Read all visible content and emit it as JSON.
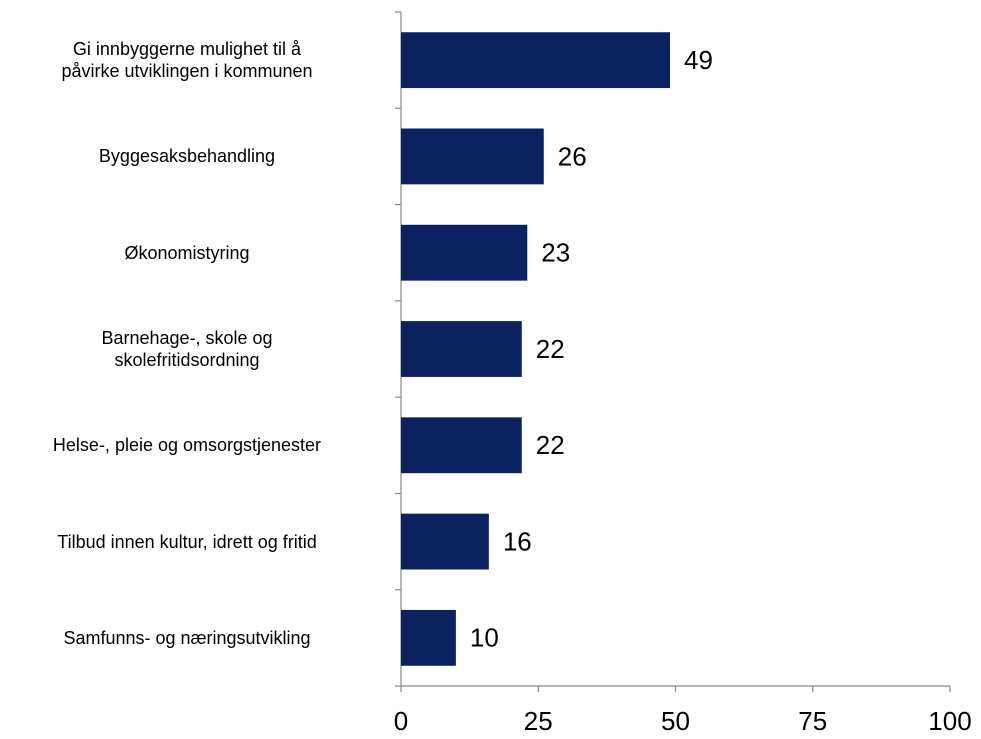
{
  "chart_data": {
    "type": "barh",
    "categories": [
      "Gi innbyggerne mulighet til å\npåvirke utviklingen i kommunen",
      "Byggesaksbehandling",
      "Økonomistyring",
      "Barnehage-, skole og\nskolefritidsordning",
      "Helse-, pleie og omsorgstjenester",
      "Tilbud innen kultur, idrett og fritid",
      "Samfunns- og næringsutvikling"
    ],
    "values": [
      49,
      26,
      23,
      22,
      22,
      16,
      10
    ],
    "color": "#0c2260",
    "xlim": [
      0,
      100
    ],
    "xticks": [
      0,
      25,
      50,
      75,
      100
    ],
    "grid": false
  }
}
